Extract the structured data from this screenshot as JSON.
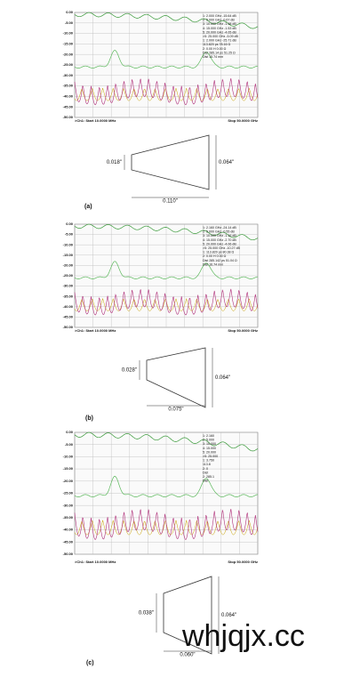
{
  "panels": [
    {
      "label": "(a)",
      "yticks": [
        "0.00",
        "-5.00",
        "-10.00",
        "-15.00",
        "-20.00",
        "-25.00",
        "-30.00",
        "-35.00",
        "-40.00",
        "-45.00",
        "-50.00"
      ],
      "start": ">Ch1: Start 10.0000 MHz",
      "stop": "Stop 50.0000 GHz",
      "markers": [
        "1: 2.000 GHz -15.64 dB",
        "2: 5.000 GHz -0.67 dB",
        "3: 10.000 GHz -1.98 dB",
        "4: 15.000 GHz -1.53 dB",
        "5: 20.000 GHz -4.05 dB",
        ">5: 25.000 GHz -5.09 dB",
        "1: 2.000 GHz -25.71 dB",
        "113.820 ps 78.16 Ω",
        "2: 0.00 H 0.00 Ω",
        "Dist 285.14 ps 51.25 Ω",
        "Dist 15.74 mm"
      ],
      "dims": {
        "left": "0.018\"",
        "right": "0.064\"",
        "bottom": "0.110\""
      }
    },
    {
      "label": "(b)",
      "yticks": [
        "0.00",
        "-5.00",
        "-10.00",
        "-15.00",
        "-20.00",
        "-25.00",
        "-30.00",
        "-35.00",
        "-40.00",
        "-45.00",
        "-50.00"
      ],
      "start": ">Ch1: Start 10.0000 MHz",
      "stop": "Stop 50.0000 GHz",
      "markers": [
        "1: 2.160 GHz -24.14 dB",
        "2: 5.000 GHz -0.55 dB",
        "3: 10.000 GHz -1.16 dB",
        "4: 15.000 GHz -2.70 dB",
        "5: 20.000 GHz -4.06 dB",
        ">5: 25.000 GHz -10.27 dB",
        "1: 113.820 ps 80.38 Ω",
        "2: 0.00 H 0.00 Ω",
        "Dist 285.142 ps 51.04 Ω",
        "Dist 16.74 mm"
      ],
      "dims": {
        "left": "0.028\"",
        "right": "0.064\"",
        "bottom": "0.075\""
      }
    },
    {
      "label": "(c)",
      "yticks": [
        "0.00",
        "-5.00",
        "-10.00",
        "-15.00",
        "-20.00",
        "-25.00",
        "-30.00",
        "-35.00",
        "-40.00",
        "-45.00",
        "-50.00"
      ],
      "start": ">Ch1: Start 10.0000 MHz",
      "stop": "Stop 50.0000 GHz",
      "markers": [
        "1: 2.160",
        "2: 5.000",
        "3: 10.000",
        "4: 15.000",
        "5: 20.000",
        ">5: 25.000",
        "1: 3.750",
        "113.8",
        "2: 0",
        "Dist",
        "2: 285.1",
        "Dist"
      ],
      "dims": {
        "left": "0.038\"",
        "right": "0.064\"",
        "bottom": "0.060\""
      }
    }
  ],
  "watermark": "whjqjx.cc"
}
